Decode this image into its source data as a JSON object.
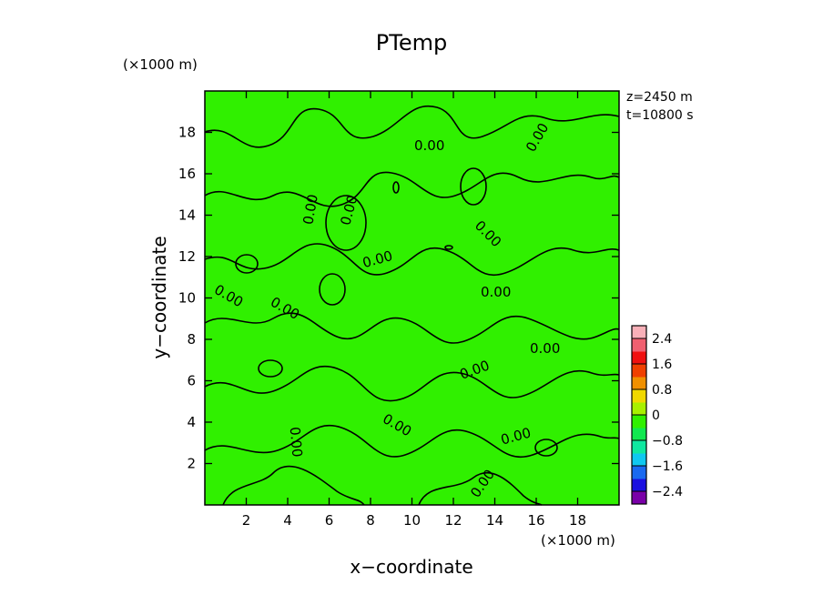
{
  "chart_data": {
    "type": "heatmap",
    "title": "PTemp",
    "xlabel": "x−coordinate",
    "ylabel": "y−coordinate",
    "x_unit": "(×1000 m)",
    "y_unit": "(×1000 m)",
    "xlim": [
      0,
      20
    ],
    "ylim": [
      0,
      20
    ],
    "x_ticks": [
      "2",
      "4",
      "6",
      "8",
      "10",
      "12",
      "14",
      "16",
      "18"
    ],
    "y_ticks": [
      "2",
      "4",
      "6",
      "8",
      "10",
      "12",
      "14",
      "16",
      "18"
    ],
    "annotations": [
      "z=2450 m",
      "t=10800 s"
    ],
    "field_value": 0.0,
    "contour_level": 0.0,
    "contour_label": "0.00",
    "colorbar": {
      "ticks": [
        "2.4",
        "1.6",
        "0.8",
        "0",
        "−0.8",
        "−1.6",
        "−2.4"
      ],
      "range": [
        -2.8,
        2.8
      ],
      "colors": [
        "#7a00a8",
        "#1a10e0",
        "#1a6af0",
        "#10c8f0",
        "#10e8a0",
        "#10e850",
        "#30f000",
        "#a8f000",
        "#f0d800",
        "#f09000",
        "#f04000",
        "#f01010",
        "#f06070",
        "#f8b0b8"
      ]
    }
  }
}
